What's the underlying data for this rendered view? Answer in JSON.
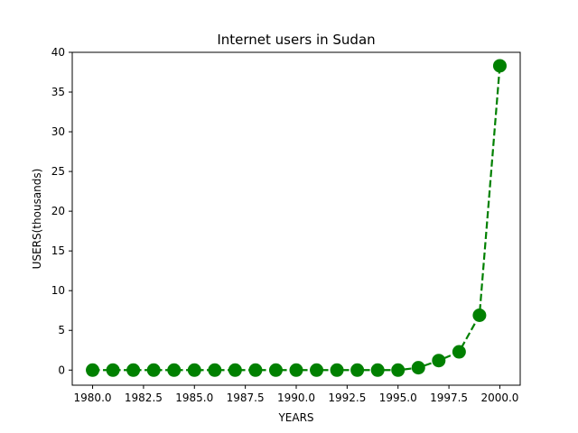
{
  "chart_data": {
    "type": "line",
    "title": "Internet users in Sudan",
    "xlabel": "YEARS",
    "ylabel": "USERS(thousands)",
    "xlim": [
      1979.0,
      2001.0
    ],
    "ylim": [
      -1.9,
      40.0
    ],
    "xticks": [
      "1980.0",
      "1982.5",
      "1985.0",
      "1987.5",
      "1990.0",
      "1992.5",
      "1995.0",
      "1997.5",
      "2000.0"
    ],
    "yticks": [
      "0",
      "5",
      "10",
      "15",
      "20",
      "25",
      "30",
      "35",
      "40"
    ],
    "grid": false,
    "series": [
      {
        "color": "#008000",
        "line_style": "dashed",
        "marker": "circle",
        "x": [
          1980,
          1981,
          1982,
          1983,
          1984,
          1985,
          1986,
          1987,
          1988,
          1989,
          1990,
          1991,
          1992,
          1993,
          1994,
          1995,
          1996,
          1997,
          1998,
          1999,
          2000
        ],
        "y": [
          0,
          0,
          0,
          0,
          0,
          0,
          0,
          0,
          0,
          0,
          0,
          0,
          0,
          0,
          0,
          0,
          0.3,
          1.2,
          2.3,
          6.9,
          38.3
        ]
      }
    ]
  }
}
